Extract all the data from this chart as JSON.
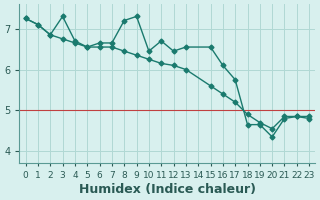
{
  "background_color": "#d8f0ee",
  "grid_color": "#b0d8d4",
  "line_color": "#1a7a6e",
  "marker_color": "#1a7a6e",
  "xlabel": "Humidex (Indice chaleur)",
  "xlabel_fontsize": 9,
  "tick_fontsize": 7.0,
  "ylabel_ticks": [
    4,
    5,
    6,
    7
  ],
  "xlim": [
    -0.5,
    23.5
  ],
  "ylim": [
    3.7,
    7.6
  ],
  "line1_x": [
    0,
    1,
    2,
    3,
    4,
    5,
    6,
    7,
    8,
    9,
    10,
    11,
    12,
    13,
    15,
    16,
    17,
    18,
    19,
    20,
    21,
    22,
    23
  ],
  "line1_y": [
    7.25,
    7.1,
    6.85,
    7.3,
    6.7,
    6.55,
    6.65,
    6.65,
    7.2,
    7.3,
    6.45,
    6.7,
    6.45,
    6.55,
    6.55,
    6.1,
    5.75,
    4.65,
    4.65,
    4.35,
    4.8,
    4.85,
    4.8
  ],
  "line2_x": [
    0,
    1,
    2,
    3,
    4,
    5,
    6,
    7,
    8,
    9,
    10,
    11,
    12,
    13,
    15,
    16,
    17,
    18,
    19,
    20,
    21,
    22,
    23
  ],
  "line2_y": [
    7.25,
    7.1,
    6.85,
    6.75,
    6.65,
    6.55,
    6.55,
    6.55,
    6.45,
    6.35,
    6.25,
    6.15,
    6.1,
    6.0,
    5.6,
    5.4,
    5.2,
    4.9,
    4.7,
    4.55,
    4.85,
    4.85,
    4.85
  ],
  "hline_y": 5.0,
  "hline_color": "#c04040",
  "hline_lw": 0.8,
  "tick_color": "#2a5a54",
  "spine_color": "#5a9a94"
}
